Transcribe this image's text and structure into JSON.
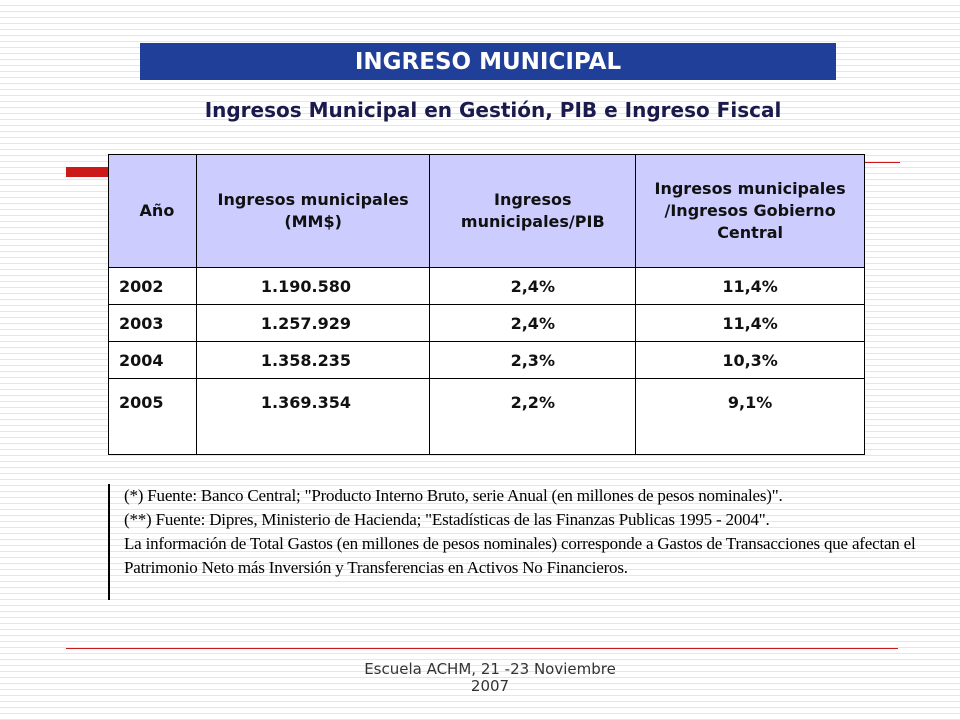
{
  "header": {
    "title": "INGRESO MUNICIPAL",
    "subtitle": "Ingresos Municipal en Gestión, PIB e Ingreso Fiscal"
  },
  "table": {
    "headers": [
      "Año",
      "Ingresos municipales (MM$)",
      "Ingresos municipales/PIB",
      "Ingresos municipales /Ingresos Gobierno Central"
    ],
    "rows": [
      [
        "2002",
        "1.190.580",
        "2,4%",
        "11,4%"
      ],
      [
        "2003",
        "1.257.929",
        "2,4%",
        "11,4%"
      ],
      [
        "2004",
        "1.358.235",
        "2,3%",
        "10,3%"
      ],
      [
        "2005",
        "1.369.354",
        "2,2%",
        "9,1%"
      ]
    ]
  },
  "notes": [
    "(*)  Fuente:  Banco Central; \"Producto Interno Bruto, serie Anual (en millones de pesos nominales)\".",
    "(**) Fuente:  Dipres, Ministerio de Hacienda;  \"Estadísticas de las Finanzas Publicas 1995 - 2004\".",
    "La información de Total Gastos (en millones de pesos nominales) corresponde a Gastos de Transacciones que afectan el",
    "Patrimonio Neto más Inversión y Transferencias en Activos No Financieros."
  ],
  "footer": {
    "line1": "Escuela ACHM, 21 -23 Noviembre",
    "line2": "2007"
  },
  "colors": {
    "title_bar": "#1f3f99",
    "table_header": "#ccccff",
    "accent_red": "#cc1a1a"
  }
}
